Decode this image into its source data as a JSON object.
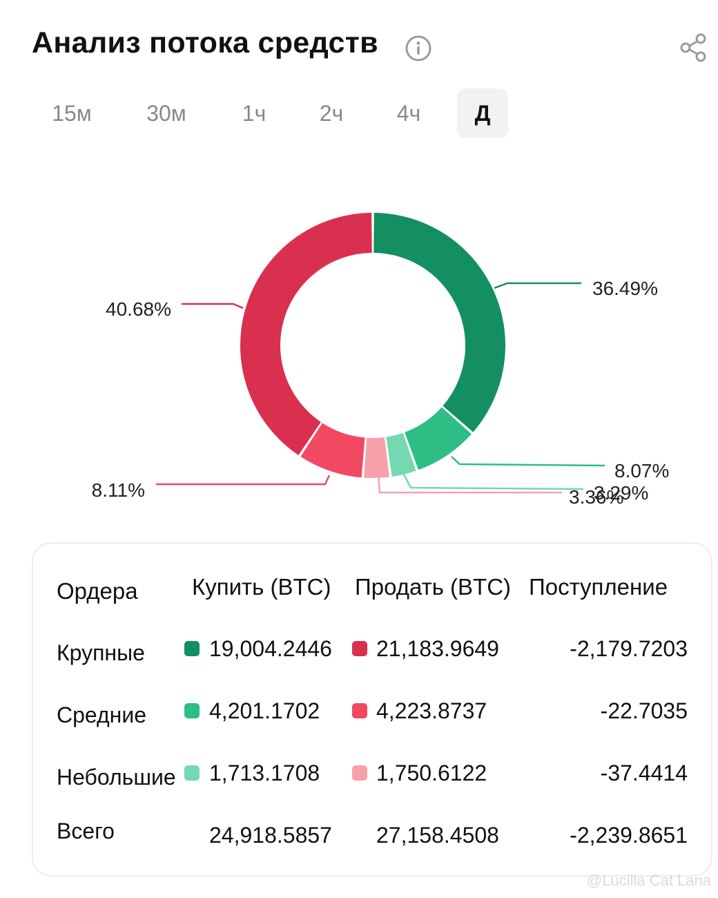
{
  "header": {
    "title": "Анализ потока средств"
  },
  "tabs": [
    {
      "label": "15м",
      "active": false
    },
    {
      "label": "30м",
      "active": false
    },
    {
      "label": "1ч",
      "active": false
    },
    {
      "label": "2ч",
      "active": false
    },
    {
      "label": "4ч",
      "active": false
    },
    {
      "label": "Д",
      "active": true
    }
  ],
  "colors": {
    "buy_large": "#138f62",
    "buy_medium": "#2ebd85",
    "buy_small": "#75d8b0",
    "sell_large": "#d9304f",
    "sell_medium": "#f24962",
    "sell_small": "#f7a1aa"
  },
  "chart_data": {
    "type": "pie",
    "slices": [
      {
        "label": "36.49%",
        "value": 36.49,
        "color": "#138f62"
      },
      {
        "label": "8.07%",
        "value": 8.07,
        "color": "#2ebd85"
      },
      {
        "label": "3.29%",
        "value": 3.29,
        "color": "#75d8b0"
      },
      {
        "label": "3.36%",
        "value": 3.36,
        "color": "#f7a1aa"
      },
      {
        "label": "8.11%",
        "value": 8.11,
        "color": "#f24962"
      },
      {
        "label": "40.68%",
        "value": 40.68,
        "color": "#d9304f"
      }
    ]
  },
  "table": {
    "headers": [
      "Ордера",
      "Купить (BTC)",
      "Продать (BTC)",
      "Поступление"
    ],
    "rows": [
      {
        "label": "Крупные",
        "buy": "19,004.2446",
        "sell": "21,183.9649",
        "inflow": "-2,179.7203",
        "buy_color": "#138f62",
        "sell_color": "#d9304f"
      },
      {
        "label": "Средние",
        "buy": "4,201.1702",
        "sell": "4,223.8737",
        "inflow": "-22.7035",
        "buy_color": "#2ebd85",
        "sell_color": "#f24962"
      },
      {
        "label": "Небольшие",
        "buy": "1,713.1708",
        "sell": "1,750.6122",
        "inflow": "-37.4414",
        "buy_color": "#75d8b0",
        "sell_color": "#f7a1aa"
      }
    ],
    "total": {
      "label": "Всего",
      "buy": "24,918.5857",
      "sell": "27,158.4508",
      "inflow": "-2,239.8651"
    }
  },
  "watermark": "@Lucilla Cat Lana"
}
